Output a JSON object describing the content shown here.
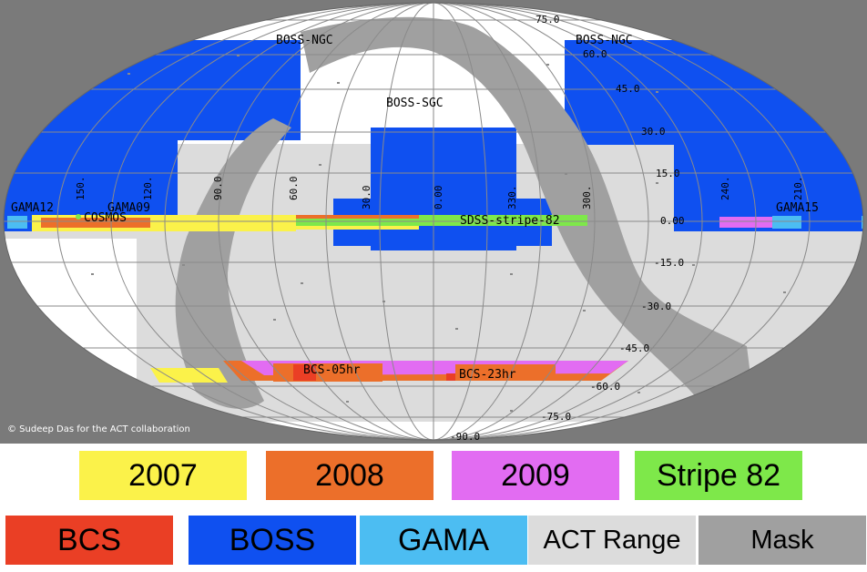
{
  "credit": "© Sudeep Das for the ACT collaboration",
  "survey_labels": {
    "boss_ngc_left": "BOSS-NGC",
    "boss_ngc_right": "BOSS-NGC",
    "boss_sgc": "BOSS-SGC",
    "gama12": "GAMA12",
    "gama09": "GAMA09",
    "gama15": "GAMA15",
    "cosmos": "COSMOS",
    "sdss_stripe": "SDSS-stripe-82",
    "bcs_05hr": "BCS-05hr",
    "bcs_23hr": "BCS-23hr"
  },
  "ra_labels": [
    "150.",
    "120.",
    "90.0",
    "60.0",
    "30.0",
    "0.00",
    "330.",
    "300.",
    "240.",
    "210."
  ],
  "dec_labels": [
    "75.0",
    "60.0",
    "45.0",
    "30.0",
    "15.0",
    "0.00",
    "-15.0",
    "-30.0",
    "-45.0",
    "-60.0",
    "-75.0",
    "-90.0"
  ],
  "legend": [
    {
      "label": "2007",
      "color": "#fbf24a"
    },
    {
      "label": "2008",
      "color": "#ec6f2a"
    },
    {
      "label": "2009",
      "color": "#e26cf2"
    },
    {
      "label": "Stripe 82",
      "color": "#7ee84a"
    },
    {
      "label": "BCS",
      "color": "#ea3f25"
    },
    {
      "label": "BOSS",
      "color": "#0f50f0"
    },
    {
      "label": "GAMA",
      "color": "#4cbdf2"
    },
    {
      "label": "ACT Range",
      "color": "#dcdcdc"
    },
    {
      "label": "Mask",
      "color": "#a0a0a0"
    }
  ]
}
